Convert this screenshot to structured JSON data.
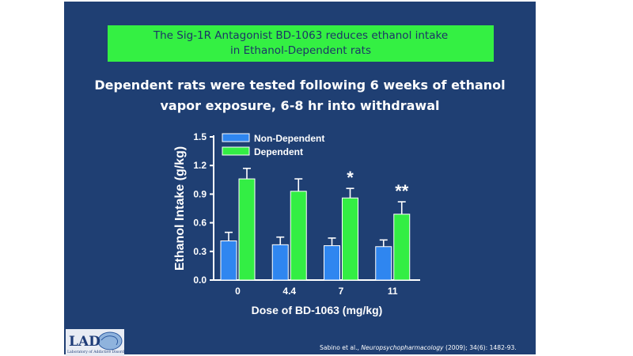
{
  "slide": {
    "title_line1": "The Sig-1R Antagonist BD-1063 reduces ethanol intake",
    "title_line2": "in Ethanol-Dependent rats",
    "subtitle_line1": "Dependent rats were tested following 6 weeks of ethanol",
    "subtitle_line2": "vapor  exposure, 6-8 hr into withdrawal",
    "citation_authors": "Sabino et al., ",
    "citation_journal": "Neuropsychopharmacology",
    "citation_rest": " (2009); 34(6): 1482-93.",
    "logo_text": "LAD",
    "logo_subtext": "Laboratory of Addictive Disorders"
  },
  "colors": {
    "background": "#1f3f73",
    "title_box": "#34f043",
    "non_dependent": "#2f86f0",
    "dependent": "#33ee44",
    "text": "#ffffff"
  },
  "chart_data": {
    "type": "bar",
    "xlabel": "Dose of BD-1063 (mg/kg)",
    "ylabel": "Ethanol Intake (g/kg)",
    "ylim": [
      0,
      1.5
    ],
    "yticks": [
      "0.0",
      "0.3",
      "0.6",
      "0.9",
      "1.2",
      "1.5"
    ],
    "categories": [
      "0",
      "4.4",
      "7",
      "11"
    ],
    "series": [
      {
        "name": "Non-Dependent",
        "values": [
          0.41,
          0.37,
          0.36,
          0.35
        ],
        "errors": [
          0.09,
          0.08,
          0.08,
          0.07
        ]
      },
      {
        "name": "Dependent",
        "values": [
          1.06,
          0.93,
          0.86,
          0.69
        ],
        "errors": [
          0.11,
          0.13,
          0.1,
          0.13
        ]
      }
    ],
    "annotations": [
      "",
      "",
      "*",
      "**"
    ],
    "legend_position": "top-left"
  }
}
